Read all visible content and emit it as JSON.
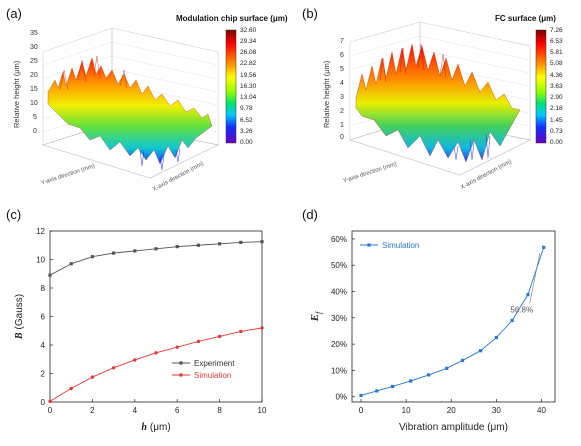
{
  "panels": {
    "a": {
      "label": "(a)",
      "colorbar_title": "Modulation chip surface (μm)",
      "colorbar_ticks": [
        "32.60",
        "29.34",
        "26.08",
        "22.82",
        "19.56",
        "16.30",
        "13.04",
        "9.78",
        "6.52",
        "3.26",
        "0.00"
      ],
      "z_label": "Relative height (μm)",
      "z_ticks": [
        "35",
        "30",
        "25",
        "20",
        "15",
        "10",
        "5",
        "0"
      ],
      "x_axis_label": "X-axis direction (mm)",
      "y_axis_label": "Y-axis direction (mm)"
    },
    "b": {
      "label": "(b)",
      "colorbar_title": "FC surface (μm)",
      "colorbar_ticks": [
        "7.26",
        "6.53",
        "5.81",
        "5.08",
        "4.36",
        "3.63",
        "2.90",
        "2.18",
        "1.45",
        "0.73",
        "0.00"
      ],
      "z_label": "Relative height (μm)",
      "z_ticks": [
        "7",
        "6",
        "5",
        "4",
        "3",
        "2",
        "1",
        "0"
      ],
      "x_axis_label": "X-axis direction (mm)",
      "y_axis_label": "Y-axis direction (mm)"
    },
    "c": {
      "label": "(c)"
    },
    "d": {
      "label": "(d)"
    }
  },
  "colors": {
    "experiment": "#555555",
    "simulation_c": "#e03a3a",
    "simulation_d": "#2a78cf"
  },
  "chart_data": [
    {
      "type": "line",
      "panel": "c",
      "x": [
        0,
        1,
        2,
        3,
        4,
        5,
        6,
        7,
        8,
        9,
        10
      ],
      "series": [
        {
          "name": "Experiment",
          "values": [
            8.9,
            9.7,
            10.2,
            10.45,
            10.6,
            10.75,
            10.9,
            11.0,
            11.1,
            11.2,
            11.25
          ]
        },
        {
          "name": "Simulation",
          "values": [
            0.05,
            0.95,
            1.75,
            2.4,
            2.95,
            3.45,
            3.85,
            4.25,
            4.6,
            4.95,
            5.2
          ]
        }
      ],
      "xlabel_var": "h",
      "xlabel_unit": "(μm)",
      "ylabel_var": "B",
      "ylabel_unit": "(Gauss)",
      "xlim": [
        0,
        10
      ],
      "ylim": [
        0,
        12
      ],
      "xticks": [
        "0",
        "2",
        "4",
        "6",
        "8",
        "10"
      ],
      "yticks": [
        "0",
        "2",
        "4",
        "6",
        "8",
        "10",
        "12"
      ],
      "legend_position": "bottom-right"
    },
    {
      "type": "line",
      "panel": "d",
      "x": [
        0,
        3.5,
        7,
        11,
        15,
        19,
        22.5,
        26.5,
        30,
        33.5,
        37,
        40.5
      ],
      "series": [
        {
          "name": "Simulation",
          "values": [
            0.5,
            2.2,
            3.9,
            6.0,
            8.3,
            10.8,
            13.8,
            17.5,
            22.5,
            29.0,
            38.8,
            56.8
          ]
        }
      ],
      "xlabel": "Vibration amplitude (μm)",
      "ylabel_var": "E",
      "ylabel_sub": "f",
      "xlim": [
        -2,
        43
      ],
      "ylim": [
        -2,
        63
      ],
      "xticks": [
        "0",
        "10",
        "20",
        "30",
        "40"
      ],
      "yticks": [
        "0%",
        "10%",
        "20%",
        "30%",
        "40%",
        "50%",
        "60%"
      ],
      "annotation": "56.8%",
      "legend_position": "top-left"
    }
  ]
}
